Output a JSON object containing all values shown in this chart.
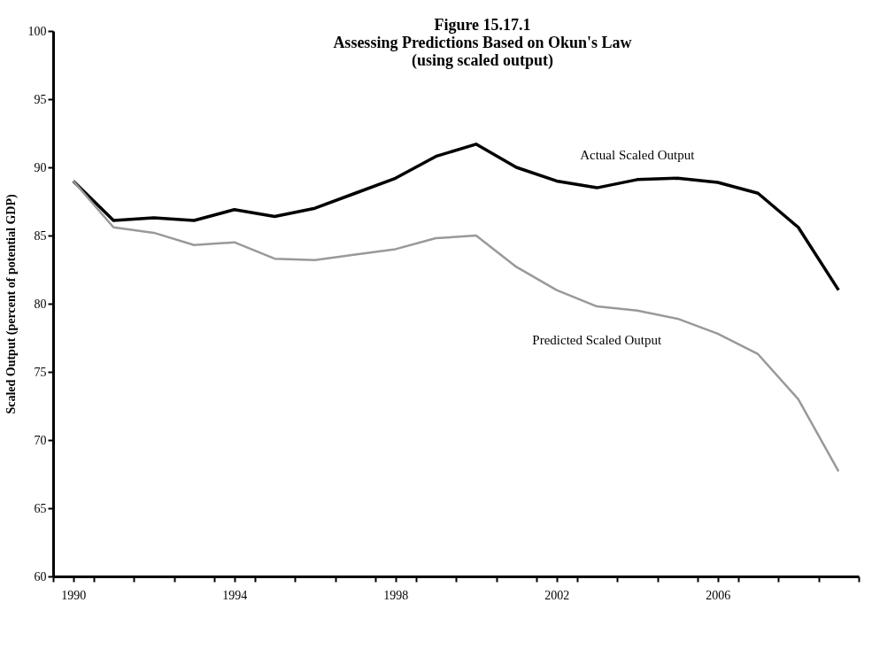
{
  "chart_data": {
    "type": "line",
    "title": [
      "Figure 15.17.1",
      "Assessing Predictions Based on Okun's Law",
      "(using scaled output)"
    ],
    "ylabel": "Scaled Output (percent of potential GDP)",
    "x": [
      1990,
      1991,
      1992,
      1993,
      1994,
      1995,
      1996,
      1997,
      1998,
      1999,
      2000,
      2001,
      2002,
      2003,
      2004,
      2005,
      2006,
      2007,
      2008,
      2009
    ],
    "series": [
      {
        "name": "Actual Scaled Output",
        "color": "#000000",
        "values": [
          89.0,
          86.1,
          86.3,
          86.1,
          86.9,
          86.4,
          87.0,
          88.1,
          89.2,
          90.8,
          91.7,
          90.0,
          89.0,
          88.5,
          89.1,
          89.2,
          88.9,
          88.1,
          85.6,
          81.0
        ]
      },
      {
        "name": "Predicted Scaled Output",
        "color": "#999999",
        "values": [
          89.0,
          85.6,
          85.2,
          84.3,
          84.5,
          83.3,
          83.2,
          83.6,
          84.0,
          84.8,
          85.0,
          82.7,
          81.0,
          79.8,
          79.5,
          78.9,
          77.8,
          76.3,
          73.0,
          67.7
        ]
      }
    ],
    "xlim": [
      1989.5,
      2009.5
    ],
    "xticks": [
      {
        "value": 1989.5,
        "label": null
      },
      1990,
      {
        "value": 1990.5,
        "label": null
      },
      {
        "value": 1991.5,
        "label": null
      },
      {
        "value": 1992.5,
        "label": null
      },
      {
        "value": 1993.5,
        "label": null
      },
      1994,
      {
        "value": 1994.5,
        "label": null
      },
      {
        "value": 1995.5,
        "label": null
      },
      {
        "value": 1996.5,
        "label": null
      },
      {
        "value": 1997.5,
        "label": null
      },
      1998,
      {
        "value": 1998.5,
        "label": null
      },
      {
        "value": 1999.5,
        "label": null
      },
      {
        "value": 2000.5,
        "label": null
      },
      {
        "value": 2001.5,
        "label": null
      },
      2002,
      {
        "value": 2002.5,
        "label": null
      },
      {
        "value": 2003.5,
        "label": null
      },
      {
        "value": 2004.5,
        "label": null
      },
      {
        "value": 2005.5,
        "label": null
      },
      2006,
      {
        "value": 2006.5,
        "label": null
      },
      {
        "value": 2007.5,
        "label": null
      },
      {
        "value": 2008.5,
        "label": null
      },
      {
        "value": 2009.5,
        "label": null
      }
    ],
    "ylim": [
      60,
      100
    ],
    "yticks": [
      60,
      65,
      70,
      75,
      80,
      85,
      90,
      95,
      100
    ],
    "grid": false,
    "legend": false,
    "marker": "none",
    "line_style": "solid"
  }
}
